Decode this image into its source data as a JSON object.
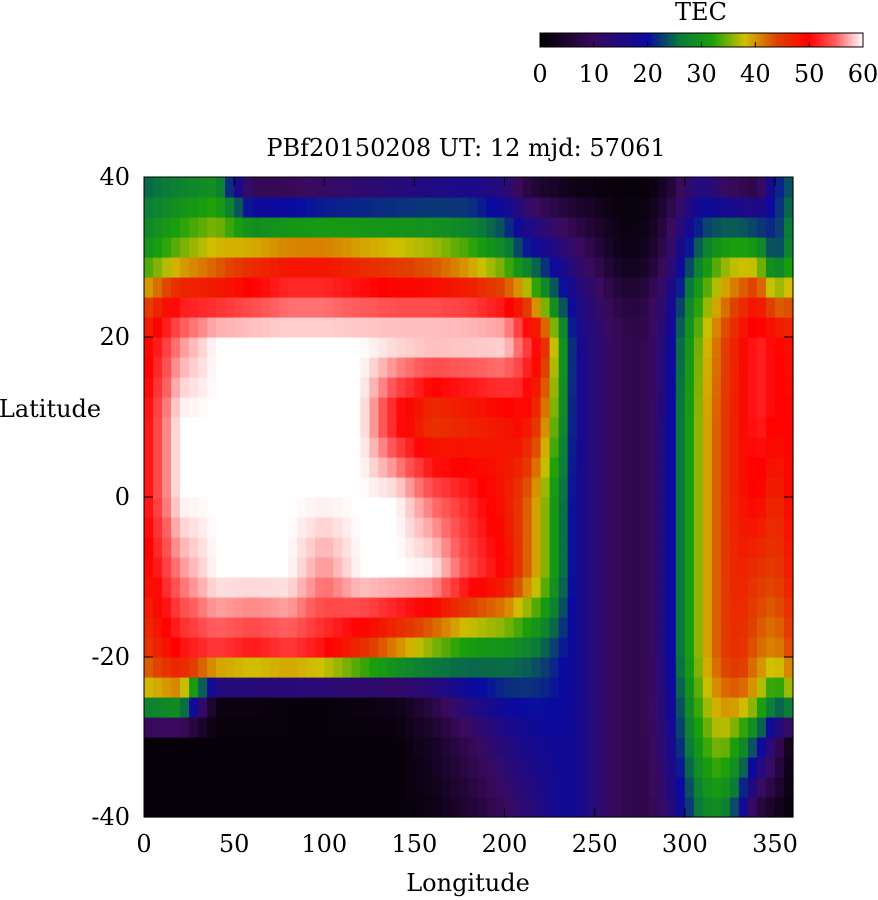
{
  "chart_data": {
    "type": "heatmap",
    "title": "PBf20150208  UT: 12  mjd: 57061",
    "xlabel": "Longitude",
    "ylabel": "Latitude",
    "xlim": [
      0,
      360
    ],
    "ylim": [
      -40,
      40
    ],
    "xticks": [
      0,
      50,
      100,
      150,
      200,
      250,
      300,
      350
    ],
    "yticks": [
      -40,
      -20,
      0,
      20,
      40
    ],
    "grid": false,
    "colorbar": {
      "label": "TEC",
      "range": [
        0,
        60
      ],
      "ticks": [
        0,
        10,
        20,
        30,
        40,
        50,
        60
      ],
      "placement": "top-right",
      "colormap": [
        {
          "v": 0,
          "c": "#000000"
        },
        {
          "v": 10,
          "c": "#3a0a5e"
        },
        {
          "v": 20,
          "c": "#0a0aa0"
        },
        {
          "v": 26,
          "c": "#0a7a3a"
        },
        {
          "v": 32,
          "c": "#1aa00a"
        },
        {
          "v": 38,
          "c": "#d0c000"
        },
        {
          "v": 44,
          "c": "#e04000"
        },
        {
          "v": 50,
          "c": "#ff0000"
        },
        {
          "v": 55,
          "c": "#ff6060"
        },
        {
          "v": 60,
          "c": "#ffffff"
        }
      ]
    },
    "grid_resolution": {
      "lon_step": 5,
      "lat_step": 2.5
    },
    "profiles": {
      "lon": [
        0,
        20,
        40,
        60,
        80,
        100,
        120,
        140,
        160,
        180,
        200,
        210,
        220,
        230,
        240,
        250,
        260,
        270,
        280,
        290,
        300,
        310,
        320,
        330,
        340,
        350,
        360
      ],
      "lat": [
        -40,
        -30,
        -25,
        -20,
        -10,
        0,
        10,
        20,
        25,
        30,
        40
      ],
      "tec": [
        [
          1,
          1,
          1,
          1,
          1,
          1,
          1,
          1,
          2,
          5,
          9,
          12,
          15,
          18,
          18,
          14,
          10,
          8,
          8,
          12,
          20,
          27,
          28,
          20,
          5,
          3,
          1
        ],
        [
          1,
          1,
          1,
          1,
          1,
          1,
          1,
          1,
          4,
          9,
          15,
          17,
          18,
          19,
          18,
          14,
          10,
          8,
          9,
          15,
          25,
          33,
          37,
          32,
          24,
          12,
          1
        ],
        [
          36,
          38,
          2,
          2,
          1,
          1,
          2,
          3,
          8,
          16,
          20,
          21,
          21,
          20,
          18,
          14,
          10,
          8,
          9,
          16,
          27,
          36,
          41,
          42,
          38,
          28,
          36
        ],
        [
          44,
          50,
          52,
          50,
          52,
          50,
          44,
          38,
          32,
          28,
          27,
          26,
          24,
          21,
          18,
          14,
          10,
          8,
          9,
          17,
          29,
          38,
          44,
          46,
          42,
          40,
          44
        ],
        [
          48,
          56,
          60,
          60,
          60,
          56,
          60,
          60,
          60,
          54,
          50,
          44,
          38,
          28,
          18,
          14,
          10,
          8,
          9,
          17,
          29,
          38,
          44,
          47,
          45,
          44,
          48
        ],
        [
          50,
          60,
          60,
          60,
          60,
          60,
          60,
          60,
          55,
          52,
          48,
          44,
          38,
          28,
          18,
          14,
          10,
          8,
          9,
          17,
          29,
          38,
          44,
          48,
          50,
          46,
          50
        ],
        [
          50,
          60,
          60,
          60,
          60,
          60,
          60,
          50,
          44,
          46,
          48,
          50,
          44,
          32,
          18,
          14,
          10,
          8,
          9,
          17,
          29,
          38,
          44,
          48,
          52,
          50,
          50
        ],
        [
          48,
          56,
          60,
          60,
          60,
          60,
          60,
          60,
          60,
          60,
          60,
          55,
          50,
          34,
          18,
          14,
          10,
          8,
          9,
          16,
          28,
          37,
          43,
          48,
          52,
          50,
          48
        ],
        [
          42,
          50,
          50,
          52,
          54,
          54,
          53,
          52,
          52,
          51,
          48,
          44,
          34,
          24,
          16,
          12,
          8,
          6,
          8,
          14,
          25,
          34,
          40,
          44,
          48,
          40,
          42
        ],
        [
          30,
          36,
          40,
          44,
          46,
          46,
          44,
          42,
          40,
          36,
          30,
          24,
          20,
          16,
          12,
          8,
          4,
          2,
          4,
          10,
          20,
          28,
          34,
          36,
          34,
          22,
          30
        ],
        [
          24,
          26,
          28,
          4,
          4,
          6,
          8,
          10,
          12,
          14,
          12,
          6,
          3,
          2,
          1,
          1,
          1,
          1,
          1,
          4,
          10,
          14,
          8,
          5,
          4,
          20,
          24
        ]
      ]
    }
  }
}
